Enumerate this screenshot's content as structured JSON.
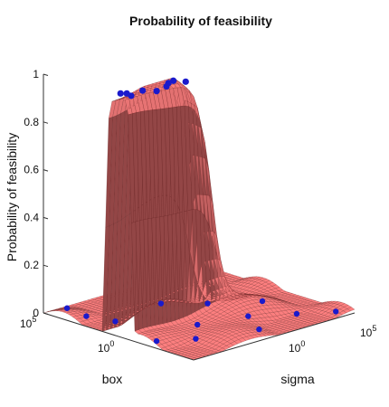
{
  "chart_data": {
    "type": "surface3d",
    "title": "Probability of feasibility",
    "zlabel": "Probability of feasibility",
    "xlabel": "box",
    "ylabel": "sigma",
    "zlim": [
      0,
      1
    ],
    "z_ticks": [
      "0",
      "0.2",
      "0.4",
      "0.6",
      "0.8",
      "1"
    ],
    "x_axis_scale": "log",
    "y_axis_scale": "log",
    "x_ticks": [
      {
        "base": "10",
        "exp": "5"
      },
      {
        "base": "10",
        "exp": "0"
      }
    ],
    "y_ticks": [
      {
        "base": "10",
        "exp": "0"
      },
      {
        "base": "10",
        "exp": "5"
      }
    ],
    "surface_color": "#f08080",
    "mesh_color": "#5a1a1a",
    "point_color": "#1a1acc",
    "feasible_points_z": 1,
    "infeasible_points_z": 0
  }
}
